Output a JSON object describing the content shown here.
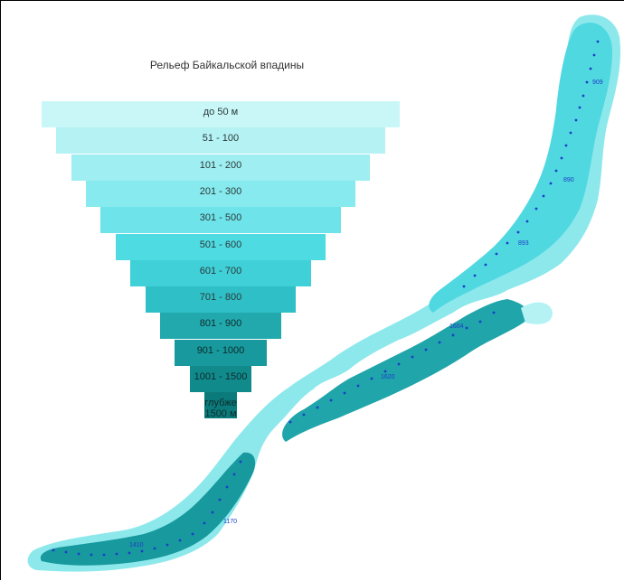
{
  "legend": {
    "title": "Рельеф Байкальской впадины",
    "bands": [
      {
        "label": "до 50 м",
        "color": "#c9f7f7"
      },
      {
        "label": "51 - 100",
        "color": "#b4f2f4"
      },
      {
        "label": "101 - 200",
        "color": "#9eeef2"
      },
      {
        "label": "201 - 300",
        "color": "#86eaee"
      },
      {
        "label": "301 - 500",
        "color": "#6ee4ea"
      },
      {
        "label": "501 - 600",
        "color": "#4fdbe2"
      },
      {
        "label": "601 - 700",
        "color": "#3fd0d8"
      },
      {
        "label": "701 - 800",
        "color": "#2fbfc6"
      },
      {
        "label": "801 - 900",
        "color": "#22a9ad"
      },
      {
        "label": "901 - 1000",
        "color": "#17999d"
      },
      {
        "label": "1001 - 1500",
        "color": "#118a8c"
      },
      {
        "label": "глубже 1500 м",
        "color": "#0b7a7a"
      }
    ]
  },
  "depth_labels": [
    "909",
    "890",
    "893",
    "1604",
    "1620",
    "1170",
    "1410"
  ],
  "colors": {
    "border": "#000000",
    "dots": "#1e3cc8"
  }
}
